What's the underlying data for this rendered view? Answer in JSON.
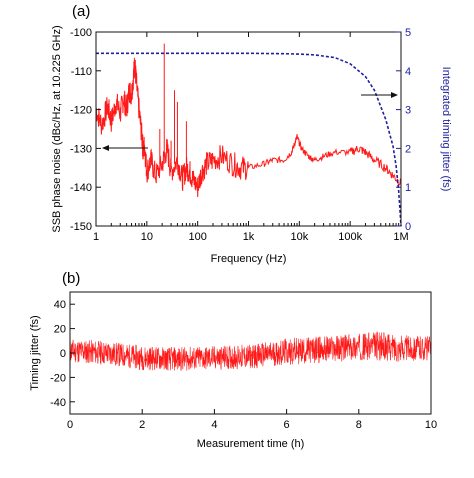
{
  "colors": {
    "data": "#ff1a1a",
    "integrated": "#1f1fa0",
    "axis": "#111111"
  },
  "chart_data": [
    {
      "panel_label": "(a)",
      "type": "line",
      "xscale": "log",
      "xlabel": "Frequency (Hz)",
      "ylabel": "SSB phase noise (dBc/Hz, at 10.225 GHz)",
      "y2label": "Integrated timing jitter (fs)",
      "xlim": [
        1,
        1000000
      ],
      "ylim": [
        -150,
        -100
      ],
      "y2lim": [
        0,
        5
      ],
      "xticks": [
        1,
        10,
        100,
        1000,
        10000,
        100000,
        1000000
      ],
      "xticklabels": [
        "1",
        "10",
        "100",
        "1k",
        "10k",
        "100k",
        "1M"
      ],
      "yticks": [
        -150,
        -140,
        -130,
        -120,
        -110,
        -100
      ],
      "yticklabels": [
        "-150",
        "-140",
        "-130",
        "-120",
        "-110",
        "-100"
      ],
      "y2ticks": [
        0,
        1,
        2,
        3,
        4,
        5
      ],
      "y2ticklabels": [
        "0",
        "1",
        "2",
        "3",
        "4",
        "5"
      ],
      "grid": false,
      "series": [
        {
          "axis": "left",
          "style": "solid",
          "x": [
            1,
            1.3,
            1.7,
            2,
            2.5,
            3,
            3.5,
            4,
            4.5,
            5,
            5.5,
            5.8,
            6.2,
            7,
            8,
            8.5,
            9,
            10,
            12,
            15,
            20,
            25,
            30,
            40,
            50,
            60,
            70,
            80,
            100,
            120,
            150,
            200,
            300,
            500,
            700,
            1000,
            2000,
            3000,
            5000,
            7000,
            8000,
            9000,
            11000,
            15000,
            20000,
            30000,
            50000,
            100000,
            150000,
            200000,
            300000,
            500000,
            700000,
            1000000
          ],
          "y": [
            -120,
            -124,
            -119,
            -123,
            -118,
            -121,
            -117,
            -120,
            -115,
            -116,
            -111,
            -108,
            -113,
            -120,
            -127,
            -131,
            -129,
            -136,
            -133,
            -137,
            -134,
            -130,
            -136,
            -133,
            -138,
            -135,
            -136,
            -138,
            -140,
            -136,
            -134,
            -133,
            -132,
            -134,
            -135,
            -135,
            -134,
            -133,
            -133,
            -131,
            -129,
            -127,
            -130,
            -132,
            -133,
            -132,
            -131,
            -131,
            -130,
            -131,
            -133,
            -135,
            -137,
            -139
          ]
        },
        {
          "axis": "right",
          "style": "dashed",
          "x": [
            1,
            100,
            1000,
            5000,
            10000,
            20000,
            50000,
            100000,
            200000,
            300000,
            500000,
            700000,
            800000,
            900000,
            1000000
          ],
          "y": [
            4.45,
            4.45,
            4.45,
            4.44,
            4.43,
            4.41,
            4.34,
            4.18,
            3.85,
            3.5,
            2.75,
            2.05,
            1.55,
            0.9,
            0.0
          ]
        }
      ],
      "spikes": [
        {
          "x": 22,
          "y": -103
        },
        {
          "x": 35,
          "y": -115
        },
        {
          "x": 40,
          "y": -118
        },
        {
          "x": 60,
          "y": -123
        },
        {
          "x": 18,
          "y": -125
        },
        {
          "x": 30,
          "y": -128
        }
      ]
    },
    {
      "panel_label": "(b)",
      "type": "line",
      "xlabel": "Measurement time (h)",
      "ylabel": "Timing jitter (fs)",
      "xlim": [
        0,
        10
      ],
      "ylim": [
        -50,
        50
      ],
      "xticks": [
        0,
        2,
        4,
        6,
        8,
        10
      ],
      "xticklabels": [
        "0",
        "2",
        "4",
        "6",
        "8",
        "10"
      ],
      "yticks": [
        -40,
        -20,
        0,
        20,
        40
      ],
      "yticklabels": [
        "-40",
        "-20",
        "0",
        "20",
        "40"
      ],
      "grid": false,
      "series": [
        {
          "x": [
            0,
            1,
            2,
            3,
            4,
            5,
            6,
            7,
            8,
            8.5,
            9,
            10
          ],
          "y": [
            2,
            0,
            -4,
            -5,
            -4,
            -3,
            1,
            3,
            5,
            6,
            4,
            4
          ],
          "spread": [
            10,
            10,
            10,
            10,
            10,
            10,
            11,
            11,
            11,
            12,
            11,
            10
          ]
        }
      ]
    }
  ]
}
